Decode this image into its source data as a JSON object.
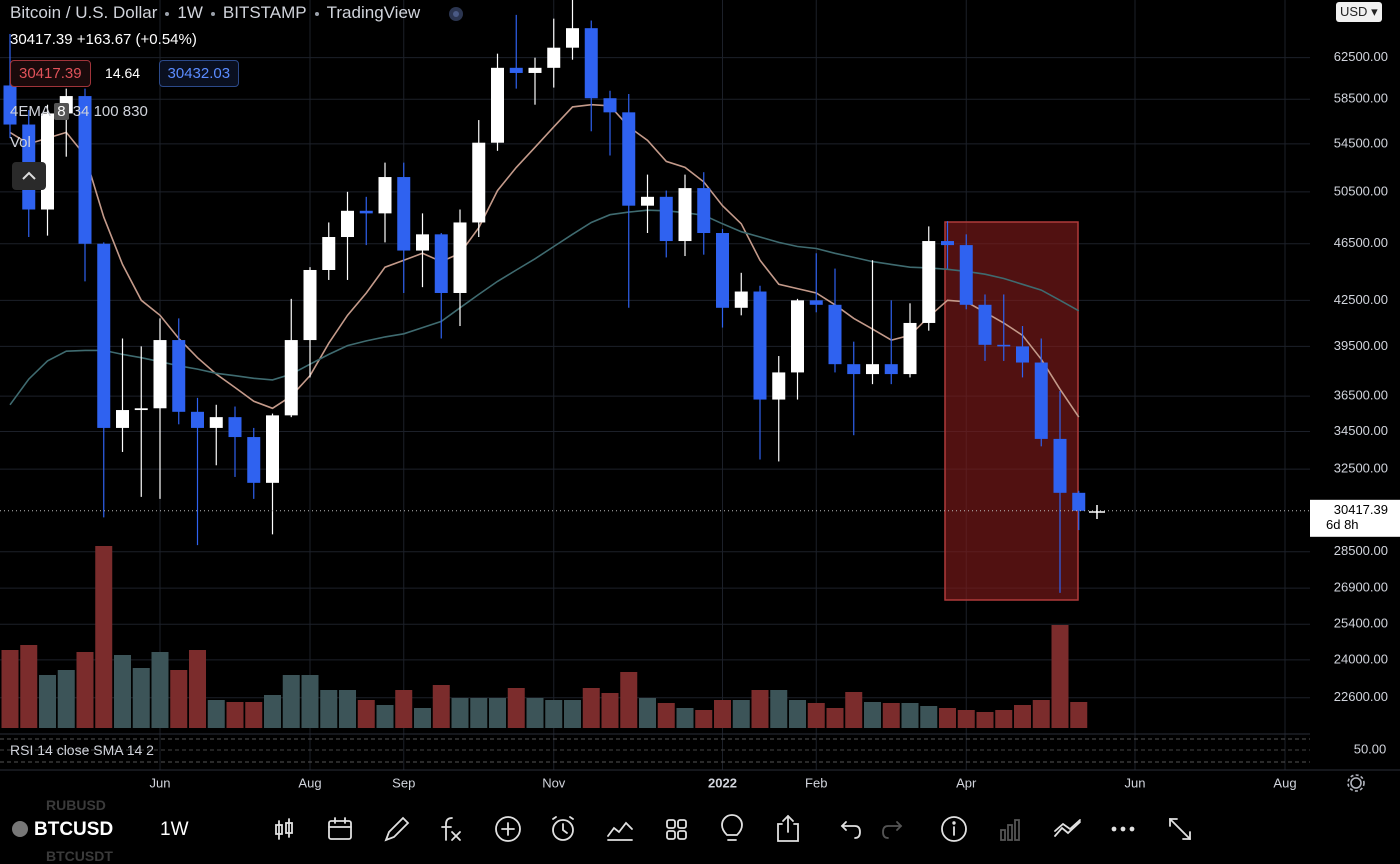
{
  "header": {
    "title": "Bitcoin / U.S. Dollar",
    "interval": "1W",
    "exchange": "BITSTAMP",
    "source": "TradingView",
    "quote": "30417.39",
    "change": "+163.67 (+0.54%)",
    "bid": "30417.39",
    "spread": "14.64",
    "ask": "30432.03"
  },
  "indicators": {
    "ema": "4EMA",
    "ema_active": "8",
    "ema_rest": "34 100 830",
    "vol": "Vol",
    "rsi": "RSI 14 close SMA 14 2"
  },
  "currency_button": "USD",
  "chart_data": {
    "type": "candlestick",
    "log_scale": true,
    "grid": true,
    "ylim": [
      21300,
      68500
    ],
    "yticks": [
      {
        "value": 62500,
        "label": "62500.00"
      },
      {
        "value": 58500,
        "label": "58500.00"
      },
      {
        "value": 54500,
        "label": "54500.00"
      },
      {
        "value": 50500,
        "label": "50500.00"
      },
      {
        "value": 46500,
        "label": "46500.00"
      },
      {
        "value": 42500,
        "label": "42500.00"
      },
      {
        "value": 39500,
        "label": "39500.00"
      },
      {
        "value": 36500,
        "label": "36500.00"
      },
      {
        "value": 34500,
        "label": "34500.00"
      },
      {
        "value": 32500,
        "label": "32500.00"
      },
      {
        "value": 28500,
        "label": "28500.00"
      },
      {
        "value": 26900,
        "label": "26900.00"
      },
      {
        "value": 25400,
        "label": "25400.00"
      },
      {
        "value": 24000,
        "label": "24000.00"
      },
      {
        "value": 22600,
        "label": "22600.00"
      }
    ],
    "categories": [
      null,
      null,
      null,
      null,
      null,
      null,
      null,
      null,
      "Jun",
      null,
      null,
      null,
      null,
      null,
      null,
      null,
      "Aug",
      null,
      null,
      null,
      null,
      "Sep",
      null,
      null,
      null,
      null,
      null,
      null,
      null,
      "Nov",
      null,
      null,
      null,
      null,
      null,
      null,
      null,
      null,
      "2022",
      null,
      null,
      null,
      null,
      "Feb",
      null,
      null,
      null,
      null,
      null,
      null,
      null,
      "Apr",
      null,
      null,
      null,
      null,
      null,
      null,
      null,
      null,
      "Jun",
      null,
      null,
      null,
      null,
      null,
      null,
      null,
      "Aug"
    ],
    "open": [
      59800,
      56200,
      49100,
      57200,
      58800,
      46500,
      34700,
      35700,
      35800,
      39900,
      35600,
      34700,
      35300,
      34200,
      31800,
      35400,
      39900,
      44600,
      47000,
      49000,
      48800,
      51700,
      46000,
      47200,
      43000,
      48100,
      54600,
      61500,
      61000,
      61500,
      63500,
      65500,
      58600,
      57300,
      49400,
      50100,
      46700,
      50800,
      47300,
      42000,
      43100,
      36300,
      37900,
      42500,
      42200,
      38400,
      37800,
      38400,
      37800,
      41000,
      46700,
      46400,
      42200,
      39600,
      39500,
      38500,
      34100,
      31300,
      null,
      null,
      null,
      null,
      null,
      null,
      null,
      null,
      null,
      null,
      null
    ],
    "high": [
      64900,
      57500,
      58000,
      59500,
      59500,
      46600,
      40000,
      39500,
      41300,
      41300,
      36400,
      36000,
      35900,
      34700,
      35500,
      42600,
      44800,
      48100,
      50500,
      50100,
      52900,
      52900,
      48800,
      47300,
      49100,
      56600,
      62900,
      66900,
      62500,
      66500,
      69000,
      66300,
      59300,
      59000,
      51900,
      50600,
      51900,
      52100,
      47600,
      44400,
      43500,
      38900,
      42600,
      45800,
      44700,
      39800,
      45300,
      42500,
      42300,
      47800,
      48200,
      47200,
      42900,
      42900,
      40800,
      40000,
      36800,
      31400,
      null,
      null,
      null,
      null,
      null,
      null,
      null,
      null,
      null,
      null,
      null
    ],
    "low": [
      55000,
      47000,
      47100,
      53400,
      43800,
      30100,
      33400,
      31100,
      31000,
      34900,
      28800,
      32700,
      32100,
      31000,
      29300,
      35300,
      37600,
      43900,
      43900,
      46400,
      46600,
      43000,
      43400,
      40000,
      40800,
      47000,
      53900,
      59500,
      58000,
      59600,
      62300,
      55600,
      53500,
      42000,
      47300,
      45500,
      45600,
      45700,
      40700,
      41500,
      33000,
      32900,
      36300,
      41700,
      37900,
      34300,
      37200,
      37200,
      37600,
      40500,
      44700,
      41900,
      38600,
      38600,
      37600,
      33700,
      26700,
      29500,
      null,
      null,
      null,
      null,
      null,
      null,
      null,
      null,
      null,
      null,
      null
    ],
    "close": [
      56200,
      49100,
      57200,
      58800,
      46500,
      34700,
      35700,
      35800,
      39900,
      35600,
      34700,
      35300,
      34200,
      31800,
      35400,
      39900,
      44600,
      47000,
      49000,
      48800,
      51700,
      46000,
      47200,
      43000,
      48100,
      54600,
      61500,
      61000,
      61500,
      63500,
      65500,
      58600,
      57300,
      49400,
      50100,
      46700,
      50800,
      47300,
      42000,
      43100,
      36300,
      37900,
      42500,
      42200,
      38400,
      37800,
      38400,
      37800,
      41000,
      46700,
      46400,
      42200,
      39600,
      39500,
      38500,
      34100,
      31300,
      30417.39,
      null,
      null,
      null,
      null,
      null,
      null,
      null,
      null,
      null,
      null,
      null
    ],
    "volume": [
      78,
      83,
      53,
      58,
      76,
      182,
      73,
      60,
      76,
      58,
      78,
      28,
      26,
      26,
      33,
      53,
      53,
      38,
      38,
      28,
      23,
      38,
      20,
      43,
      30,
      30,
      30,
      40,
      30,
      28,
      28,
      40,
      35,
      56,
      30,
      25,
      20,
      18,
      28,
      28,
      38,
      38,
      28,
      25,
      20,
      36,
      26,
      25,
      25,
      22,
      20,
      18,
      16,
      18,
      23,
      28,
      103,
      26,
      null,
      null,
      null,
      null,
      null,
      null,
      null,
      null,
      null,
      null,
      null
    ],
    "volume_lim": [
      0,
      190
    ],
    "up_color": "#ffffff",
    "down_color": "#2f62f0",
    "volume_up_color": "#3c5458",
    "volume_down_color": "#7b2c2c",
    "ema_lines": [
      {
        "color": "#c49a8a",
        "values": [
          55500,
          54500,
          55000,
          55500,
          53500,
          48500,
          45000,
          42500,
          41500,
          40000,
          38800,
          37800,
          37000,
          36200,
          35800,
          36500,
          37700,
          39700,
          41500,
          43000,
          44800,
          45300,
          45800,
          45200,
          45800,
          47700,
          50600,
          52500,
          54200,
          56000,
          57800,
          58000,
          57900,
          56000,
          54800,
          53000,
          52500,
          51300,
          49400,
          48000,
          45300,
          43600,
          43300,
          43000,
          42200,
          41300,
          40600,
          39900,
          40200,
          41400,
          42500,
          42400,
          41700,
          41000,
          40200,
          38700,
          36900,
          35300,
          null,
          null,
          null,
          null,
          null,
          null,
          null,
          null,
          null,
          null,
          null
        ]
      },
      {
        "color": "#3f6b70",
        "values": [
          36000,
          37500,
          38600,
          39200,
          39250,
          39250,
          39000,
          38800,
          38550,
          38300,
          38100,
          37850,
          37700,
          37550,
          37450,
          37800,
          38400,
          39000,
          39550,
          39850,
          40100,
          40300,
          40700,
          41100,
          42000,
          42900,
          43800,
          44600,
          45400,
          46300,
          47200,
          48100,
          48700,
          48900,
          49050,
          49000,
          48850,
          48650,
          48000,
          47400,
          47000,
          46600,
          46300,
          46150,
          45800,
          45500,
          45200,
          45000,
          44800,
          44750,
          44650,
          44500,
          44300,
          44000,
          43600,
          43200,
          42500,
          41800,
          null,
          null,
          null,
          null,
          null,
          null,
          null,
          null,
          null,
          null,
          null
        ]
      }
    ],
    "last_price": 30417.39,
    "countdown": "6d 8h",
    "rsi_ylim": [
      20,
      80
    ],
    "rsi_ticks": [
      {
        "value": 50,
        "label": "50.00"
      }
    ]
  },
  "toolbar": {
    "symbol": "BTCUSD",
    "interval": "1W"
  },
  "watchlist_ghosts": [
    "RUBUSD",
    "BTCUSDT"
  ]
}
